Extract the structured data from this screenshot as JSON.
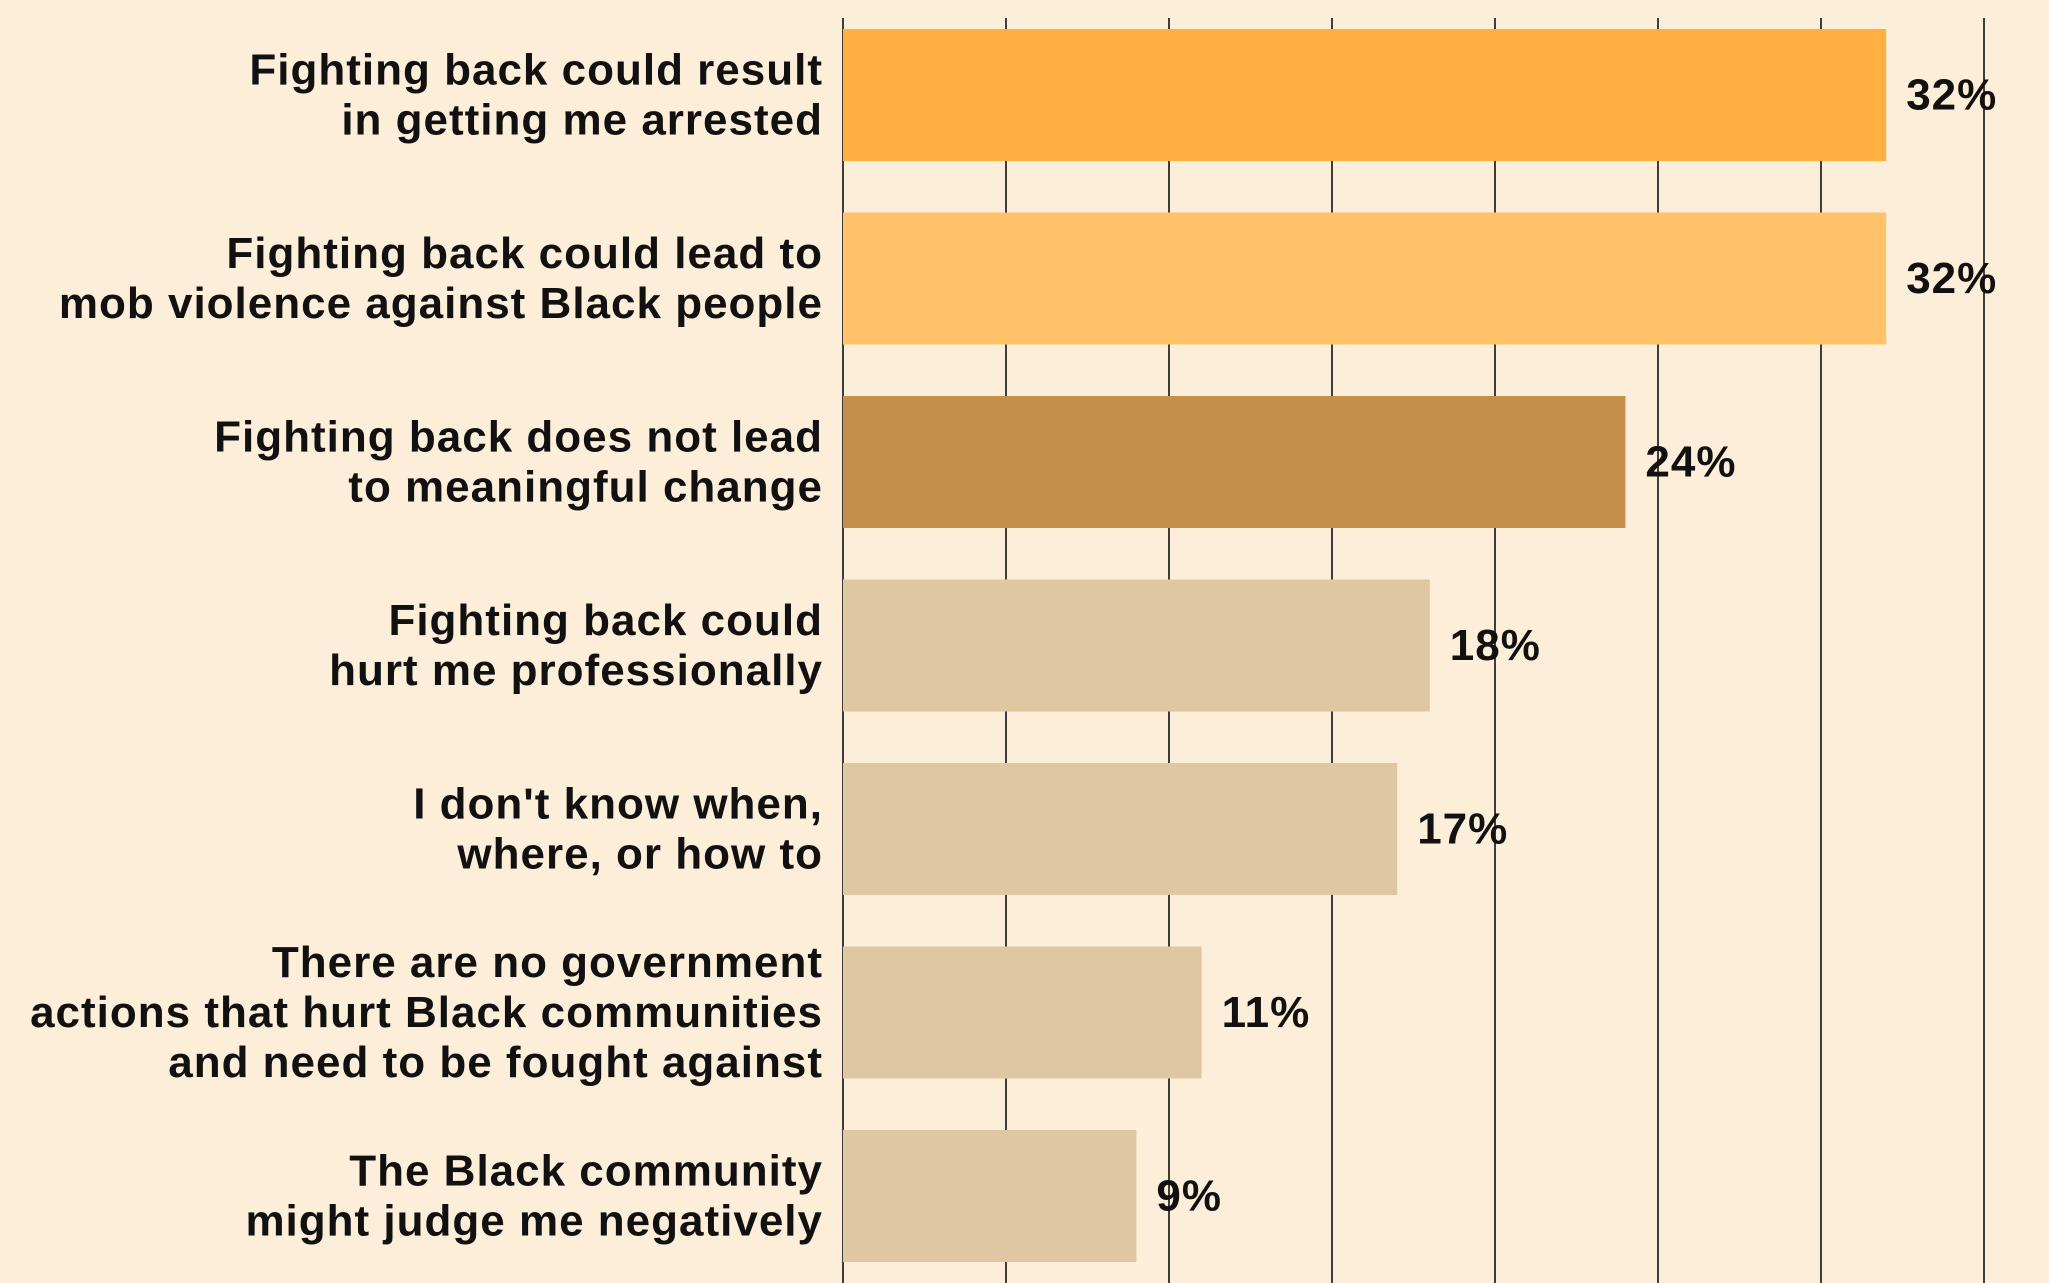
{
  "chart_data": {
    "type": "bar",
    "orientation": "horizontal",
    "title": "",
    "xlabel": "",
    "ylabel": "",
    "categories": [
      [
        "Fighting back could result",
        "in getting me arrested"
      ],
      [
        "Fighting back could lead to",
        "mob violence against Black people"
      ],
      [
        "Fighting back does not lead",
        "to meaningful change"
      ],
      [
        "Fighting back could",
        "hurt me professionally"
      ],
      [
        "I don't know when,",
        "where, or how to"
      ],
      [
        "There are no government",
        "actions that hurt Black communities",
        "and need to be fought against"
      ],
      [
        "The Black community",
        "might judge me negatively"
      ]
    ],
    "values": [
      32,
      32,
      24,
      18,
      17,
      11,
      9
    ],
    "value_labels": [
      "32%",
      "32%",
      "24%",
      "18%",
      "17%",
      "11%",
      "9%"
    ],
    "bar_colors": [
      "#ffb040",
      "#ffc268",
      "#c38f4b",
      "#dfc7a2",
      "#dfc7a2",
      "#dfc7a2",
      "#dfc7a2"
    ],
    "xlim": [
      0,
      35
    ],
    "gridlines": [
      0,
      5,
      10,
      15,
      20,
      25,
      30,
      35
    ],
    "grid": true,
    "legend": "none",
    "background_color": "#fdeed9",
    "text_color": "#111111"
  }
}
